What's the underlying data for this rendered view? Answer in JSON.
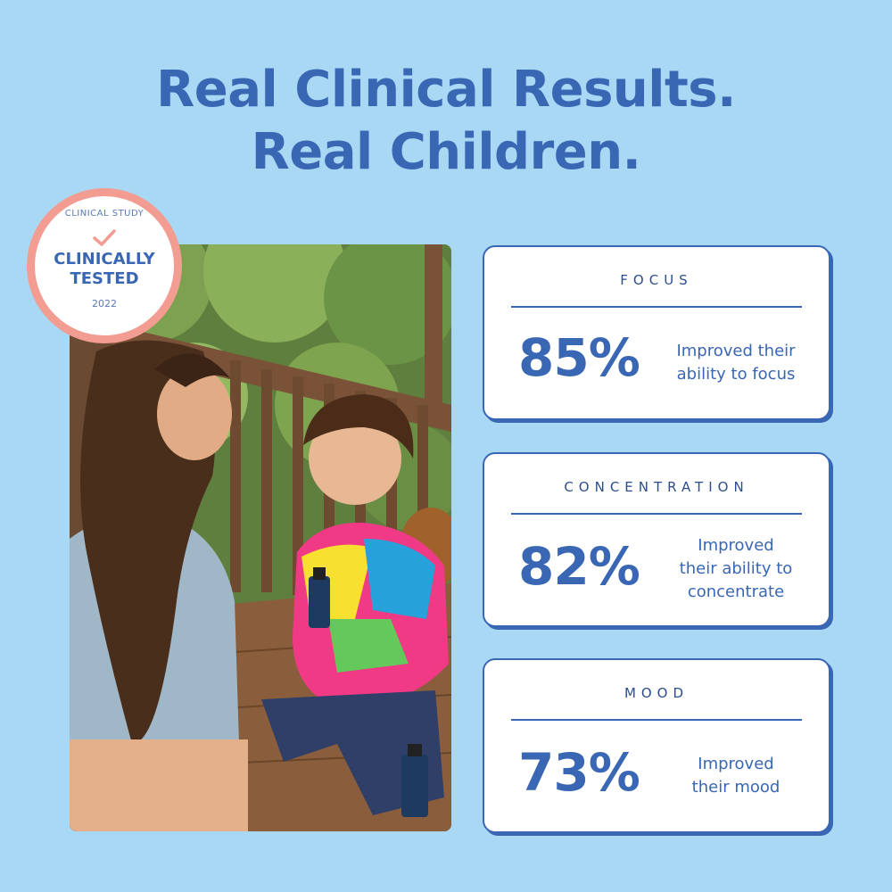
{
  "headline": {
    "line1": "Real Clinical Results.",
    "line2": "Real Children."
  },
  "badge": {
    "top_text": "CLINICAL STUDY",
    "line1": "CLINICALLY",
    "line2": "TESTED",
    "year": "2022",
    "ring_color": "#f29c92"
  },
  "stats": [
    {
      "title": "FOCUS",
      "percent": "85%",
      "desc_lines": [
        "Improved their",
        "ability to focus"
      ]
    },
    {
      "title": "CONCENTRATION",
      "percent": "82%",
      "desc_lines": [
        "Improved",
        "their ability to",
        "concentrate"
      ]
    },
    {
      "title": "MOOD",
      "percent": "73%",
      "desc_lines": [
        "Improved",
        "their mood"
      ]
    }
  ],
  "colors": {
    "background": "#a9d8f4",
    "accent": "#3a67b4"
  }
}
